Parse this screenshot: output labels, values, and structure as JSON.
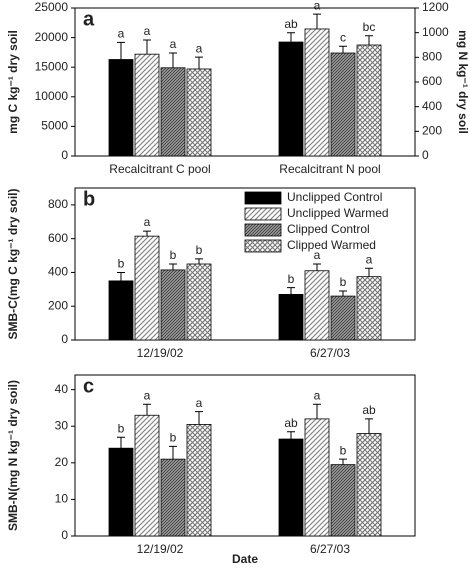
{
  "chart_data": [
    {
      "type": "bar",
      "title": "a",
      "ylabel": "mg C kg⁻¹ dry soil",
      "y2label": "mg N kg⁻¹ dry soil",
      "categories": [
        "Recalcitrant C pool",
        "Recalcitrant N pool"
      ],
      "category_axes": [
        "y",
        "y2"
      ],
      "ylim": [
        0,
        25000
      ],
      "yticks": [
        0,
        5000,
        10000,
        15000,
        20000,
        25000
      ],
      "y2lim": [
        0,
        1200
      ],
      "y2ticks": [
        0,
        200,
        400,
        600,
        800,
        1000,
        1200
      ],
      "series": [
        {
          "color": "#000000",
          "hatch": "none",
          "values": [
            16300,
            924
          ],
          "errors": [
            2900,
            75
          ],
          "letters": [
            "a",
            "ab"
          ]
        },
        {
          "color": "#888888",
          "hatch": "diagonal",
          "values": [
            17200,
            1030
          ],
          "errors": [
            2400,
            120
          ],
          "letters": [
            "a",
            "a"
          ]
        },
        {
          "color": "#444444",
          "hatch": "dense",
          "values": [
            14900,
            835
          ],
          "errors": [
            2500,
            55
          ],
          "letters": [
            "a",
            "c"
          ]
        },
        {
          "color": "#777777",
          "hatch": "cross",
          "values": [
            14700,
            900
          ],
          "errors": [
            2000,
            75
          ],
          "letters": [
            "a",
            "bc"
          ]
        }
      ]
    },
    {
      "type": "bar",
      "title": "b",
      "ylabel": "SMB-C(mg C kg⁻¹ dry soil)",
      "legend": "top-right",
      "categories": [
        "12/19/02",
        "6/27/03"
      ],
      "ylim": [
        0,
        900
      ],
      "yticks": [
        0,
        200,
        400,
        600,
        800
      ],
      "series": [
        {
          "name": "Unclipped Control",
          "color": "#000000",
          "hatch": "none",
          "values": [
            350,
            270
          ],
          "errors": [
            50,
            40
          ],
          "letters": [
            "b",
            "b"
          ]
        },
        {
          "name": "Unclipped Warmed",
          "color": "#888888",
          "hatch": "diagonal",
          "values": [
            615,
            410
          ],
          "errors": [
            30,
            40
          ],
          "letters": [
            "a",
            "a"
          ]
        },
        {
          "name": "Clipped Control",
          "color": "#444444",
          "hatch": "dense",
          "values": [
            415,
            260
          ],
          "errors": [
            35,
            30
          ],
          "letters": [
            "b",
            "b"
          ]
        },
        {
          "name": "Clipped Warmed",
          "color": "#777777",
          "hatch": "cross",
          "values": [
            450,
            375
          ],
          "errors": [
            30,
            50
          ],
          "letters": [
            "b",
            "a"
          ]
        }
      ]
    },
    {
      "type": "bar",
      "title": "c",
      "ylabel": "SMB-N(mg N kg⁻¹ dry soil)",
      "xlabel": "Date",
      "categories": [
        "12/19/02",
        "6/27/03"
      ],
      "ylim": [
        0,
        44
      ],
      "yticks": [
        0,
        10,
        20,
        30,
        40
      ],
      "series": [
        {
          "color": "#000000",
          "hatch": "none",
          "values": [
            24,
            26.5
          ],
          "errors": [
            3,
            2
          ],
          "letters": [
            "b",
            "ab"
          ]
        },
        {
          "color": "#888888",
          "hatch": "diagonal",
          "values": [
            33,
            32
          ],
          "errors": [
            3,
            4
          ],
          "letters": [
            "a",
            "a"
          ]
        },
        {
          "color": "#444444",
          "hatch": "dense",
          "values": [
            21,
            19.5
          ],
          "errors": [
            3.5,
            1.5
          ],
          "letters": [
            "b",
            "b"
          ]
        },
        {
          "color": "#777777",
          "hatch": "cross",
          "values": [
            30.5,
            28
          ],
          "errors": [
            3.5,
            4
          ],
          "letters": [
            "a",
            "ab"
          ]
        }
      ]
    }
  ]
}
